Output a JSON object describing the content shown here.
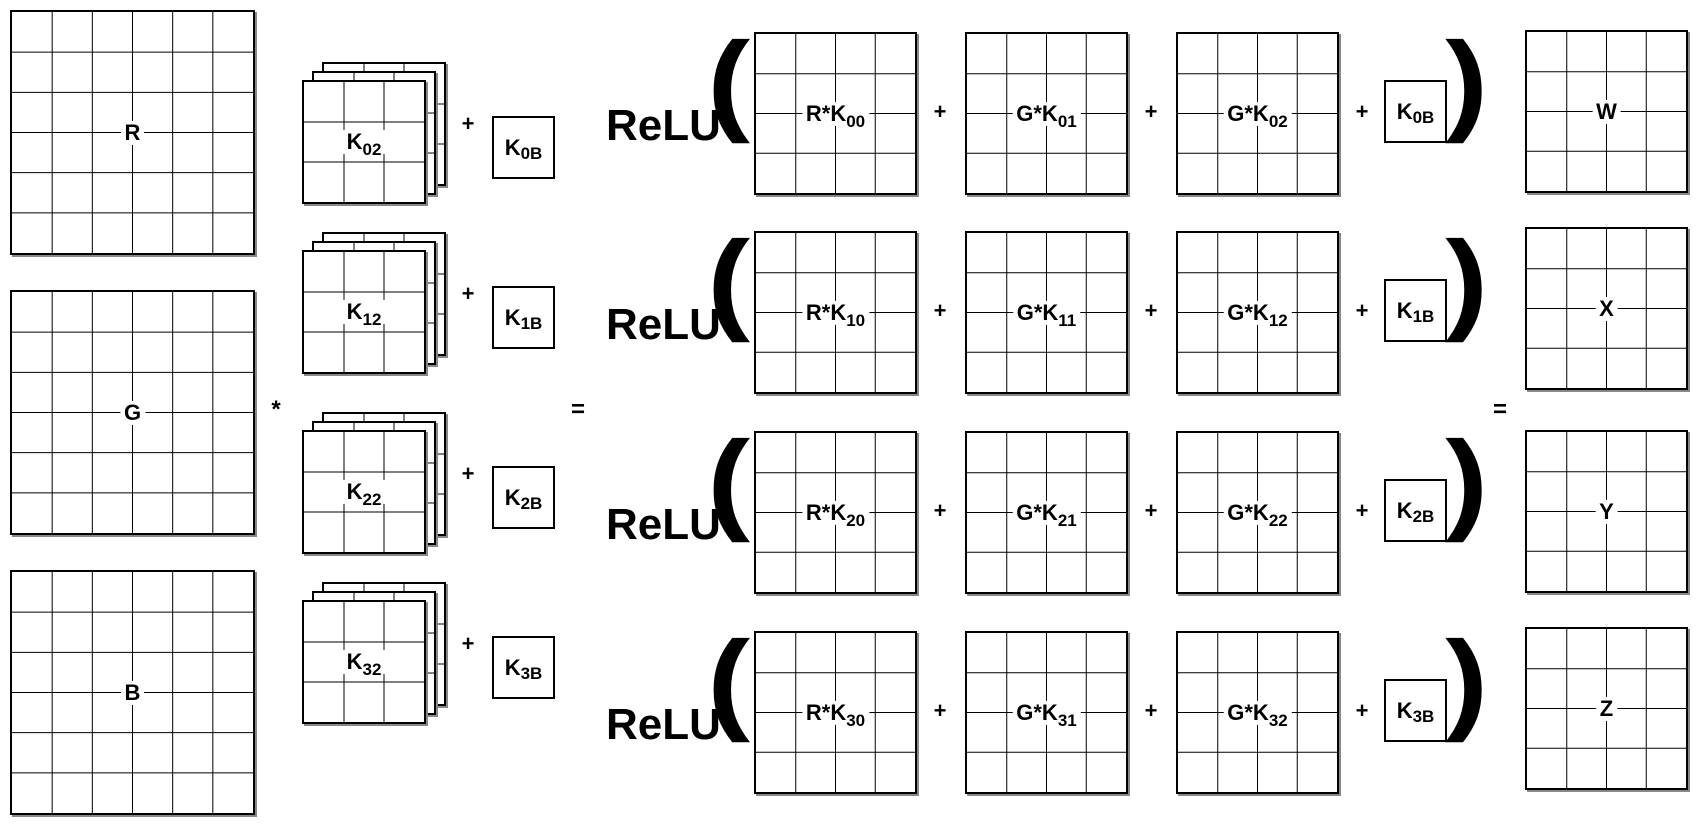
{
  "inputs": [
    "R",
    "G",
    "B"
  ],
  "operators": {
    "conv": "*",
    "plus": "+",
    "equals": "="
  },
  "activation": "ReLU",
  "kernel_rows": [
    {
      "kernel": "K",
      "kernel_sub": "02",
      "bias": "K",
      "bias_sub": "0B",
      "terms": [
        {
          "prefix": "R*K",
          "sub": "00"
        },
        {
          "prefix": "G*K",
          "sub": "01"
        },
        {
          "prefix": "G*K",
          "sub": "02"
        }
      ],
      "output": "W"
    },
    {
      "kernel": "K",
      "kernel_sub": "12",
      "bias": "K",
      "bias_sub": "1B",
      "terms": [
        {
          "prefix": "R*K",
          "sub": "10"
        },
        {
          "prefix": "G*K",
          "sub": "11"
        },
        {
          "prefix": "G*K",
          "sub": "12"
        }
      ],
      "output": "X"
    },
    {
      "kernel": "K",
      "kernel_sub": "22",
      "bias": "K",
      "bias_sub": "2B",
      "terms": [
        {
          "prefix": "R*K",
          "sub": "20"
        },
        {
          "prefix": "G*K",
          "sub": "21"
        },
        {
          "prefix": "G*K",
          "sub": "22"
        }
      ],
      "output": "Y"
    },
    {
      "kernel": "K",
      "kernel_sub": "32",
      "bias": "K",
      "bias_sub": "3B",
      "terms": [
        {
          "prefix": "R*K",
          "sub": "30"
        },
        {
          "prefix": "G*K",
          "sub": "31"
        },
        {
          "prefix": "G*K",
          "sub": "32"
        }
      ],
      "output": "Z"
    }
  ]
}
